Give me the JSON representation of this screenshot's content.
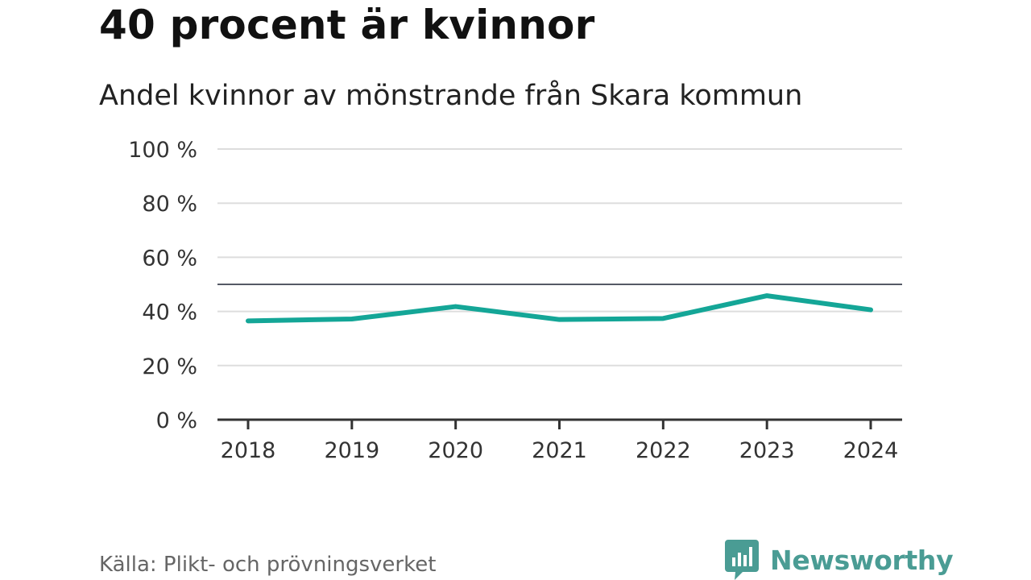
{
  "header": {
    "title": "40 procent är kvinnor",
    "subtitle": "Andel kvinnor av mönstrande från Skara kommun"
  },
  "footer": {
    "source": "Källa: Plikt- och prövningsverket",
    "brand": "Newsworthy"
  },
  "colors": {
    "line": "#14a697",
    "grid": "#dddddd",
    "reference": "#555a66",
    "axis": "#333333",
    "brand": "#4a9c94"
  },
  "chart_data": {
    "type": "line",
    "title": "40 procent är kvinnor",
    "subtitle": "Andel kvinnor av mönstrande från Skara kommun",
    "xlabel": "",
    "ylabel": "",
    "categories": [
      "2018",
      "2019",
      "2020",
      "2021",
      "2022",
      "2023",
      "2024"
    ],
    "series": [
      {
        "name": "Andel kvinnor",
        "values": [
          36.5,
          37.2,
          41.8,
          37.0,
          37.4,
          45.8,
          40.6
        ]
      }
    ],
    "ylim": [
      0,
      100
    ],
    "yticks": [
      0,
      20,
      40,
      60,
      80,
      100
    ],
    "ytick_labels": [
      "0 %",
      "20 %",
      "40 %",
      "60 %",
      "80 %",
      "100 %"
    ],
    "reference_line": 50,
    "grid": true,
    "legend": "none"
  }
}
